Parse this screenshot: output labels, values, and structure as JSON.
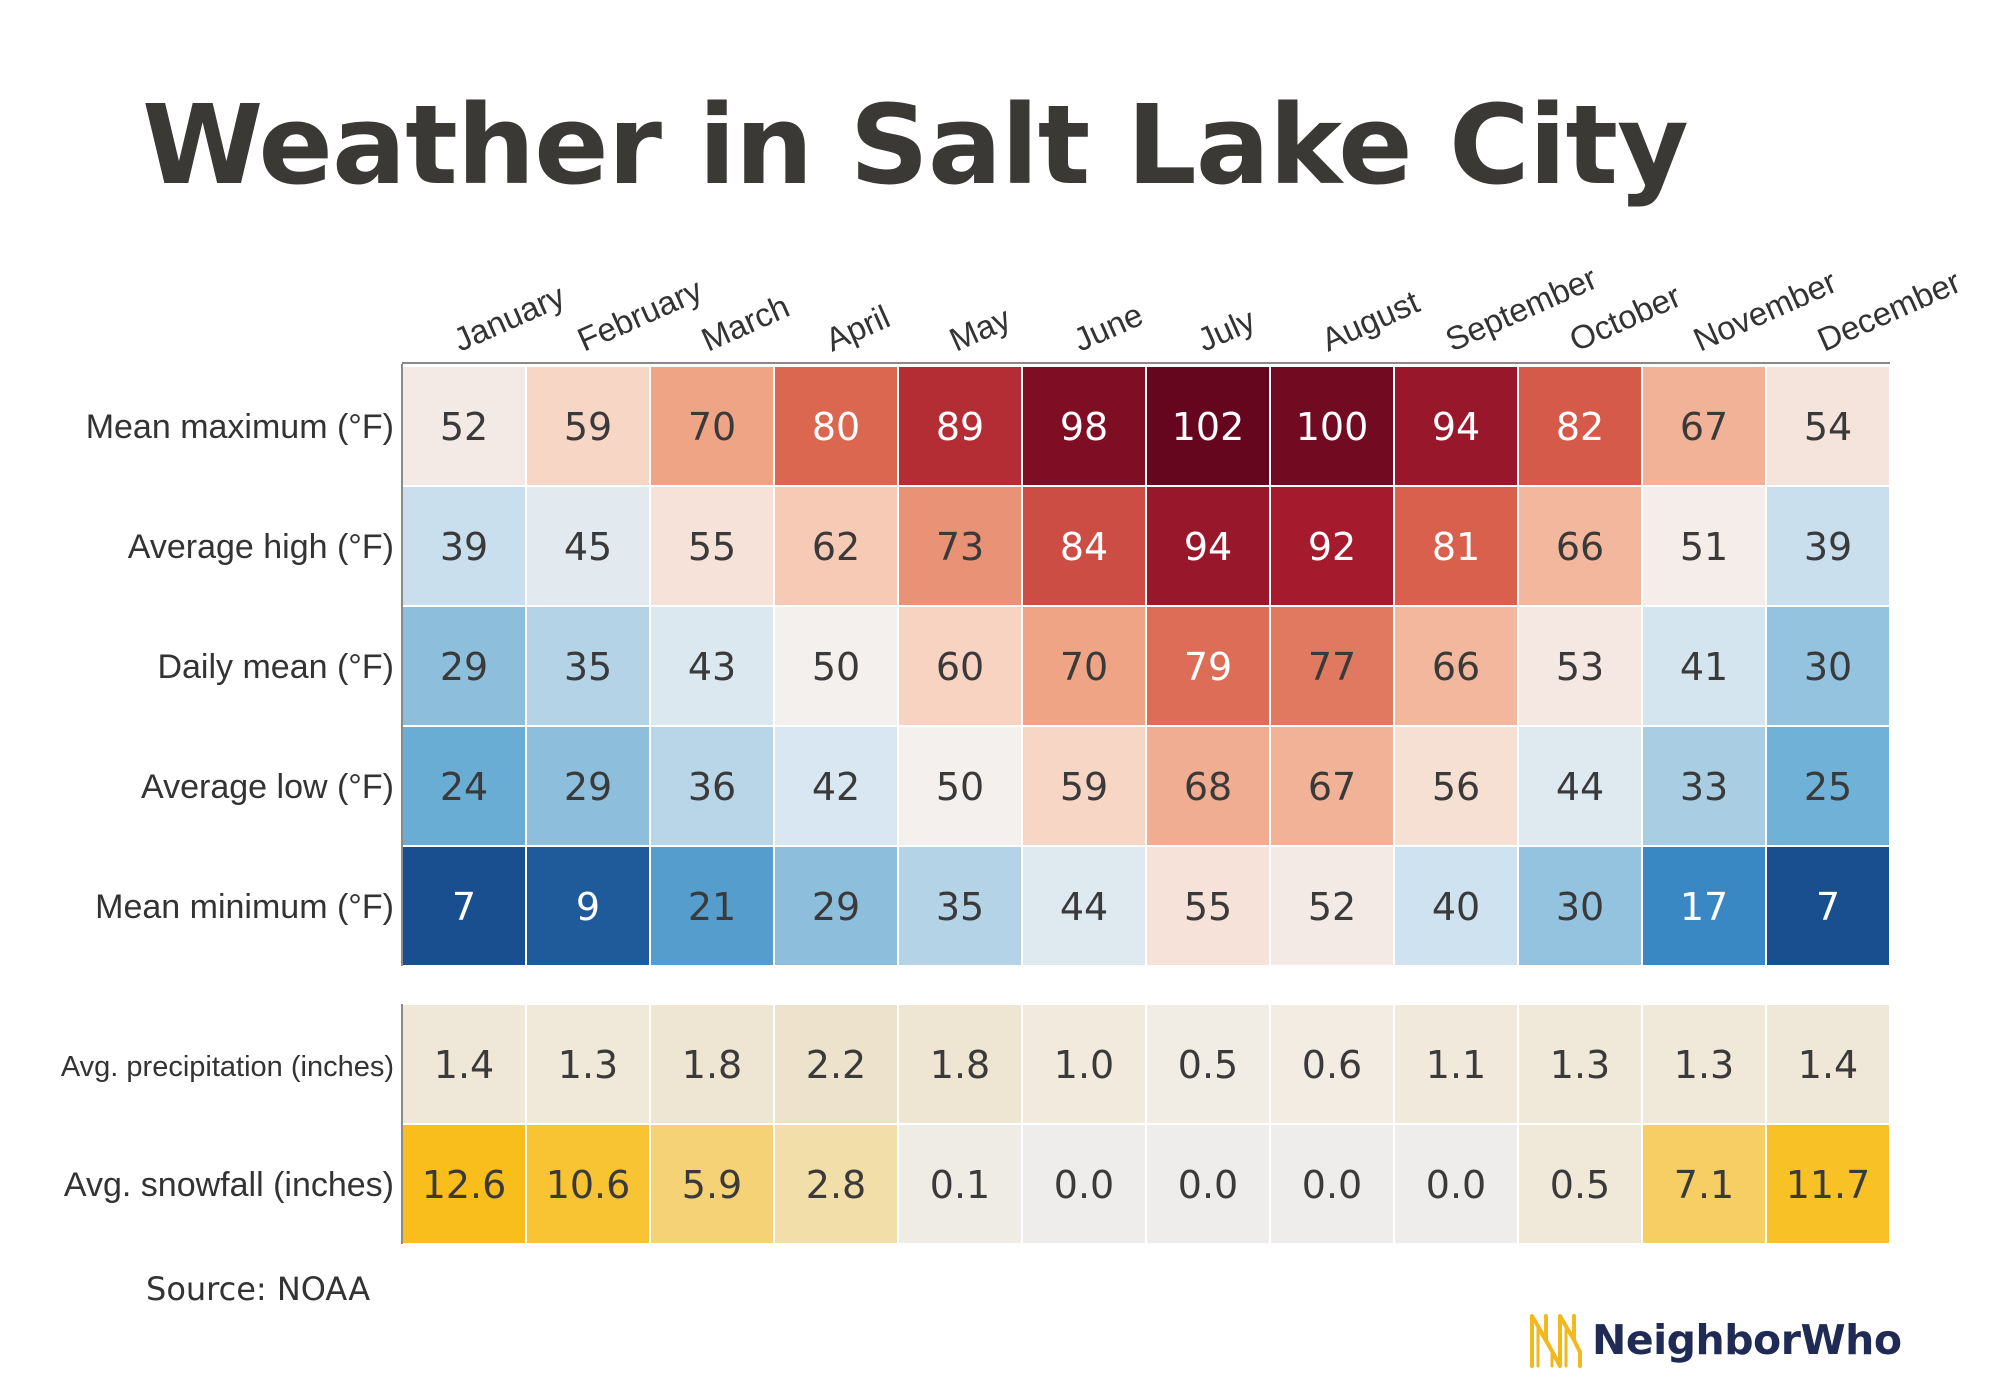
{
  "title": "Weather in Salt Lake City",
  "source": "Source: NOAA",
  "brand": {
    "name": "NeighborWho",
    "logo_icon": "neighborwho-logo-icon",
    "text_color": "#1f2a55",
    "accent": "#f2b81d"
  },
  "chart_data": {
    "type": "heatmap",
    "columns": [
      "January",
      "February",
      "March",
      "April",
      "May",
      "June",
      "July",
      "August",
      "September",
      "October",
      "November",
      "December"
    ],
    "groups": [
      {
        "scale": "diverging-blue-red",
        "center": 50,
        "rows": [
          {
            "label": "Mean maximum (°F)",
            "values": [
              "52",
              "59",
              "70",
              "80",
              "89",
              "98",
              "102",
              "100",
              "94",
              "82",
              "67",
              "54"
            ]
          },
          {
            "label": "Average high (°F)",
            "values": [
              "39",
              "45",
              "55",
              "62",
              "73",
              "84",
              "94",
              "92",
              "81",
              "66",
              "51",
              "39"
            ]
          },
          {
            "label": "Daily mean (°F)",
            "values": [
              "29",
              "35",
              "43",
              "50",
              "60",
              "70",
              "79",
              "77",
              "66",
              "53",
              "41",
              "30"
            ]
          },
          {
            "label": "Average low (°F)",
            "values": [
              "24",
              "29",
              "36",
              "42",
              "50",
              "59",
              "68",
              "67",
              "56",
              "44",
              "33",
              "25"
            ]
          },
          {
            "label": "Mean minimum (°F)",
            "values": [
              "7",
              "9",
              "21",
              "29",
              "35",
              "44",
              "55",
              "52",
              "40",
              "30",
              "17",
              "7"
            ]
          }
        ]
      },
      {
        "scale": "precipitation",
        "rows": [
          {
            "label": "Avg. precipitation (inches)",
            "values": [
              "1.4",
              "1.3",
              "1.8",
              "2.2",
              "1.8",
              "1.0",
              "0.5",
              "0.6",
              "1.1",
              "1.3",
              "1.3",
              "1.4"
            ]
          }
        ]
      },
      {
        "scale": "snowfall",
        "rows": [
          {
            "label": "Avg. snowfall (inches)",
            "values": [
              "12.6",
              "10.6",
              "5.9",
              "2.8",
              "0.1",
              "0.0",
              "0.0",
              "0.0",
              "0.0",
              "0.5",
              "7.1",
              "11.7"
            ]
          }
        ]
      }
    ],
    "colors": {
      "temperature_cold": [
        "#f3f0ee",
        "#d6e6f1",
        "#a8cde3",
        "#6aaed6",
        "#2f7fbf",
        "#1a4f8f"
      ],
      "temperature_warm": [
        "#f3f0ee",
        "#f9d2c0",
        "#eea080",
        "#d95f4b",
        "#a81c2e",
        "#65061e"
      ],
      "precipitation": [
        "#f2ede4",
        "#ede3cd"
      ],
      "snowfall": [
        "#efedeb",
        "#f9be1b"
      ]
    },
    "legend": "none",
    "grid": true
  }
}
